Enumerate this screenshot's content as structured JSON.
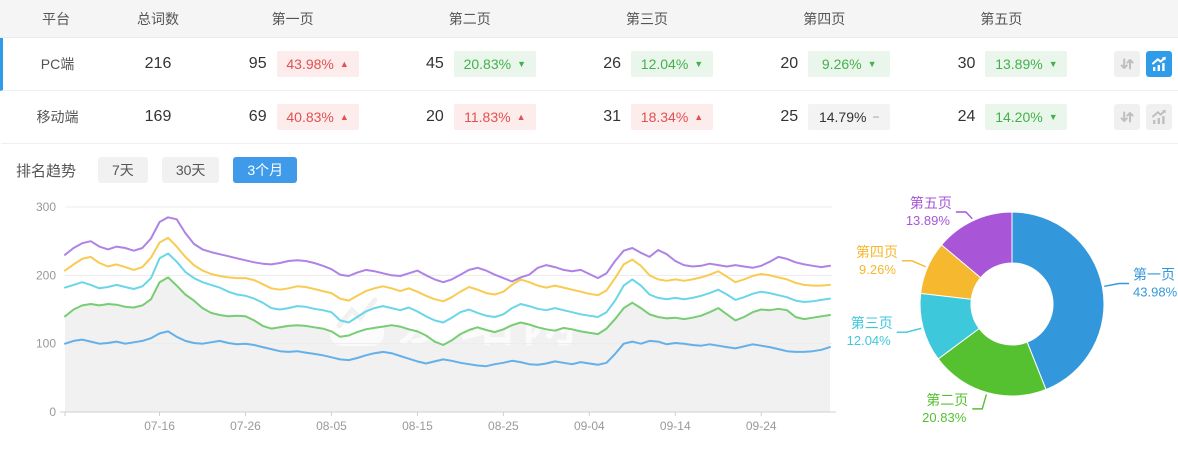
{
  "table": {
    "headers": {
      "platform": "平台",
      "total": "总词数",
      "pages": [
        "第一页",
        "第二页",
        "第三页",
        "第四页",
        "第五页"
      ]
    },
    "rows": [
      {
        "platform": "PC端",
        "total": "216",
        "active": true,
        "pages": [
          {
            "count": "95",
            "pct": "43.98%",
            "dir": "up",
            "tone": "red"
          },
          {
            "count": "45",
            "pct": "20.83%",
            "dir": "down",
            "tone": "green"
          },
          {
            "count": "26",
            "pct": "12.04%",
            "dir": "down",
            "tone": "green"
          },
          {
            "count": "20",
            "pct": "9.26%",
            "dir": "down",
            "tone": "green"
          },
          {
            "count": "30",
            "pct": "13.89%",
            "dir": "down",
            "tone": "green"
          }
        ]
      },
      {
        "platform": "移动端",
        "total": "169",
        "active": false,
        "pages": [
          {
            "count": "69",
            "pct": "40.83%",
            "dir": "up",
            "tone": "red"
          },
          {
            "count": "20",
            "pct": "11.83%",
            "dir": "up",
            "tone": "red"
          },
          {
            "count": "31",
            "pct": "18.34%",
            "dir": "up",
            "tone": "red"
          },
          {
            "count": "25",
            "pct": "14.79%",
            "dir": "flat",
            "tone": "gray"
          },
          {
            "count": "24",
            "pct": "14.20%",
            "dir": "down",
            "tone": "green"
          }
        ]
      }
    ]
  },
  "icons": {
    "up": "▲",
    "down": "▼",
    "flat": "−",
    "compare": "updown-arrows",
    "trend": "chart-line"
  },
  "trend": {
    "title": "排名趋势",
    "ranges": [
      {
        "label": "7天",
        "active": false
      },
      {
        "label": "30天",
        "active": false
      },
      {
        "label": "3个月",
        "active": true
      }
    ]
  },
  "watermark": "爱站网",
  "colors": {
    "accent_blue": "#3f9bea",
    "row_active_bar": "#2f9cea",
    "up_red": "#e25050",
    "up_red_bg": "#fdecec",
    "down_green": "#43b14b",
    "down_green_bg": "#eaf6eb",
    "flat_gray_bg": "#f3f3f3",
    "grid_line": "#ececec",
    "axis_text": "#999999",
    "area_fill": "#f1f1f1"
  },
  "chart_data": [
    {
      "type": "line",
      "title": "排名趋势 3个月",
      "x_tick_labels": [
        "07-16",
        "07-26",
        "08-05",
        "08-15",
        "08-25",
        "09-04",
        "09-14",
        "09-24"
      ],
      "x_tick_indices": [
        11,
        21,
        31,
        41,
        51,
        61,
        71,
        81
      ],
      "ylim": [
        0,
        300
      ],
      "y_ticks": [
        0,
        100,
        200,
        300
      ],
      "grid": true,
      "legend": "none",
      "series": [
        {
          "name": "第一页",
          "color": "#5cace8",
          "area": false,
          "values": [
            100,
            104,
            106,
            103,
            100,
            101,
            103,
            100,
            102,
            104,
            108,
            115,
            118,
            110,
            104,
            101,
            100,
            102,
            104,
            101,
            99,
            100,
            98,
            95,
            92,
            89,
            88,
            89,
            87,
            85,
            83,
            80,
            77,
            76,
            79,
            83,
            86,
            88,
            86,
            82,
            78,
            74,
            71,
            74,
            77,
            75,
            72,
            70,
            68,
            67,
            70,
            72,
            75,
            73,
            70,
            69,
            71,
            74,
            72,
            70,
            73,
            71,
            69,
            72,
            85,
            100,
            103,
            100,
            104,
            103,
            99,
            101,
            100,
            98,
            97,
            99,
            97,
            95,
            93,
            96,
            99,
            97,
            95,
            92,
            89,
            88,
            88,
            89,
            91,
            95
          ]
        },
        {
          "name": "第二页",
          "color": "#71ca6d",
          "area": true,
          "values": [
            140,
            150,
            156,
            158,
            156,
            158,
            157,
            154,
            153,
            156,
            165,
            190,
            197,
            185,
            172,
            163,
            152,
            145,
            142,
            140,
            141,
            140,
            134,
            126,
            122,
            124,
            126,
            127,
            126,
            124,
            122,
            118,
            110,
            112,
            117,
            121,
            123,
            125,
            127,
            125,
            121,
            118,
            112,
            103,
            98,
            105,
            114,
            120,
            124,
            120,
            117,
            121,
            127,
            131,
            128,
            124,
            121,
            119,
            123,
            121,
            118,
            116,
            114,
            122,
            136,
            152,
            160,
            152,
            143,
            139,
            137,
            138,
            136,
            138,
            141,
            146,
            152,
            143,
            134,
            139,
            146,
            150,
            149,
            151,
            149,
            139,
            136,
            138,
            140,
            142
          ]
        },
        {
          "name": "第三页",
          "color": "#62d4e6",
          "area": false,
          "values": [
            182,
            186,
            190,
            186,
            181,
            183,
            186,
            183,
            180,
            184,
            196,
            225,
            232,
            220,
            205,
            196,
            190,
            186,
            182,
            176,
            172,
            170,
            166,
            160,
            152,
            150,
            152,
            155,
            154,
            151,
            149,
            146,
            134,
            131,
            139,
            147,
            152,
            155,
            152,
            149,
            153,
            147,
            140,
            134,
            131,
            138,
            146,
            150,
            145,
            141,
            139,
            143,
            152,
            158,
            155,
            151,
            149,
            152,
            149,
            146,
            143,
            141,
            139,
            146,
            163,
            185,
            194,
            185,
            172,
            167,
            165,
            167,
            165,
            167,
            170,
            174,
            179,
            172,
            164,
            168,
            173,
            176,
            174,
            171,
            168,
            163,
            161,
            162,
            164,
            166
          ]
        },
        {
          "name": "第四页",
          "color": "#f8c84a",
          "area": false,
          "values": [
            207,
            216,
            224,
            227,
            218,
            213,
            216,
            212,
            208,
            212,
            226,
            248,
            255,
            242,
            227,
            215,
            207,
            202,
            199,
            197,
            196,
            196,
            193,
            187,
            181,
            179,
            181,
            184,
            183,
            180,
            177,
            174,
            166,
            163,
            170,
            177,
            181,
            184,
            181,
            177,
            181,
            176,
            170,
            165,
            162,
            168,
            176,
            183,
            179,
            174,
            172,
            176,
            186,
            194,
            190,
            185,
            182,
            185,
            182,
            179,
            176,
            173,
            171,
            178,
            196,
            216,
            223,
            214,
            200,
            194,
            192,
            194,
            192,
            194,
            197,
            201,
            206,
            198,
            190,
            194,
            199,
            202,
            200,
            197,
            194,
            189,
            186,
            185,
            185,
            186
          ]
        },
        {
          "name": "第五页",
          "color": "#ab7ce4",
          "area": false,
          "values": [
            230,
            240,
            247,
            250,
            242,
            238,
            242,
            240,
            236,
            240,
            254,
            278,
            285,
            282,
            262,
            246,
            238,
            234,
            231,
            228,
            225,
            222,
            219,
            217,
            216,
            218,
            221,
            222,
            221,
            218,
            214,
            209,
            201,
            199,
            204,
            208,
            206,
            203,
            200,
            199,
            203,
            207,
            200,
            194,
            190,
            194,
            201,
            208,
            211,
            207,
            201,
            196,
            191,
            197,
            201,
            211,
            215,
            212,
            208,
            206,
            208,
            202,
            196,
            203,
            221,
            236,
            240,
            233,
            227,
            237,
            231,
            221,
            215,
            213,
            214,
            217,
            215,
            213,
            215,
            213,
            211,
            214,
            220,
            227,
            224,
            219,
            216,
            214,
            212,
            214
          ]
        }
      ]
    },
    {
      "type": "pie",
      "donut": true,
      "slices": [
        {
          "label": "第一页",
          "pct": "43.98%",
          "value": 43.98,
          "color": "#3398db"
        },
        {
          "label": "第二页",
          "pct": "20.83%",
          "value": 20.83,
          "color": "#55c130"
        },
        {
          "label": "第三页",
          "pct": "12.04%",
          "value": 12.04,
          "color": "#3ec8dc"
        },
        {
          "label": "第四页",
          "pct": "9.26%",
          "value": 9.26,
          "color": "#f5b82e"
        },
        {
          "label": "第五页",
          "pct": "13.89%",
          "value": 13.89,
          "color": "#a855d8"
        }
      ]
    }
  ]
}
